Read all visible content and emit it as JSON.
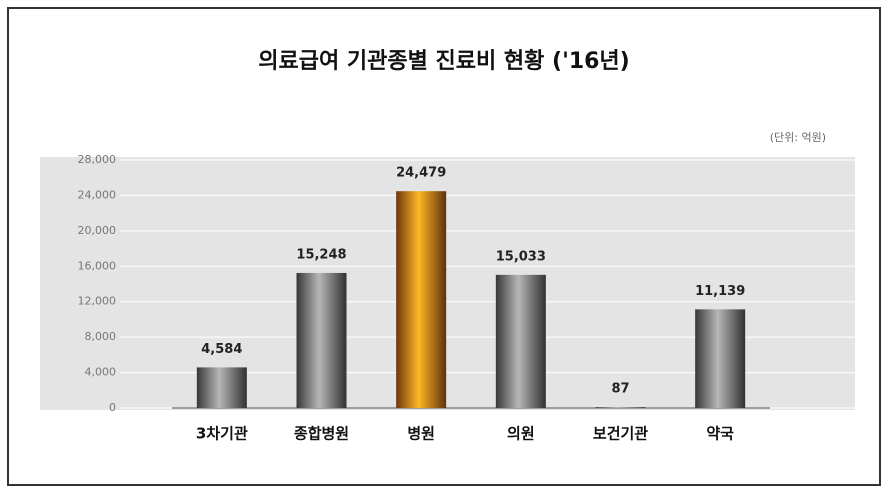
{
  "chart_data": {
    "type": "bar",
    "title": "의료급여 기관종별 진료비 현황 ('16년)",
    "subtitle": "(단위: 억원)",
    "categories": [
      "3차기관",
      "종합병원",
      "병원",
      "의원",
      "보건기관",
      "약국"
    ],
    "values": [
      4584,
      15248,
      24479,
      15033,
      87,
      11139
    ],
    "value_labels": [
      "4,584",
      "15,248",
      "24,479",
      "15,033",
      "87",
      "11,139"
    ],
    "colors": [
      "#7a7a7a",
      "#7a7a7a",
      "#f07a1a",
      "#7a7a7a",
      "#7a7a7a",
      "#7a7a7a"
    ],
    "ylim": [
      0,
      28000
    ],
    "yticks": [
      0,
      {
        "value": 4000,
        "label": "4,000"
      },
      {
        "value": 8000,
        "label": "8,000"
      },
      {
        "value": 12000,
        "label": "12,000"
      },
      {
        "value": 16000,
        "label": "16,000"
      },
      {
        "value": 20000,
        "label": "20,000"
      },
      {
        "value": 24000,
        "label": "24,000"
      },
      {
        "value": 28000,
        "label": "28,000"
      }
    ],
    "grid": true
  }
}
